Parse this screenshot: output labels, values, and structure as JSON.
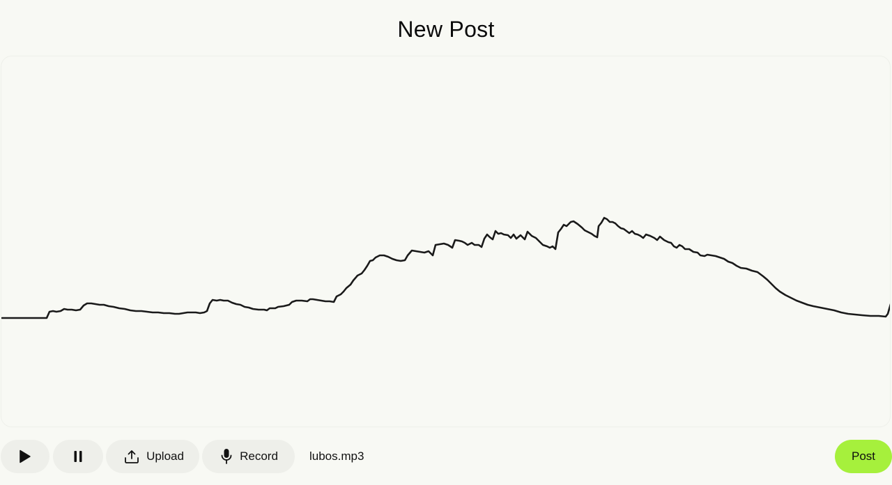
{
  "page": {
    "title": "New Post"
  },
  "player": {
    "play_icon": "play-icon",
    "pause_icon": "pause-icon",
    "upload_icon": "upload-icon",
    "upload_label": "Upload",
    "record_icon": "microphone-icon",
    "record_label": "Record",
    "file_name": "lubos.mp3"
  },
  "actions": {
    "post_label": "Post"
  },
  "colors": {
    "background": "#f8f9f4",
    "button_bg": "#eeefea",
    "post_button_bg": "#a6f03c",
    "waveform_stroke": "#1a1a1a"
  }
}
